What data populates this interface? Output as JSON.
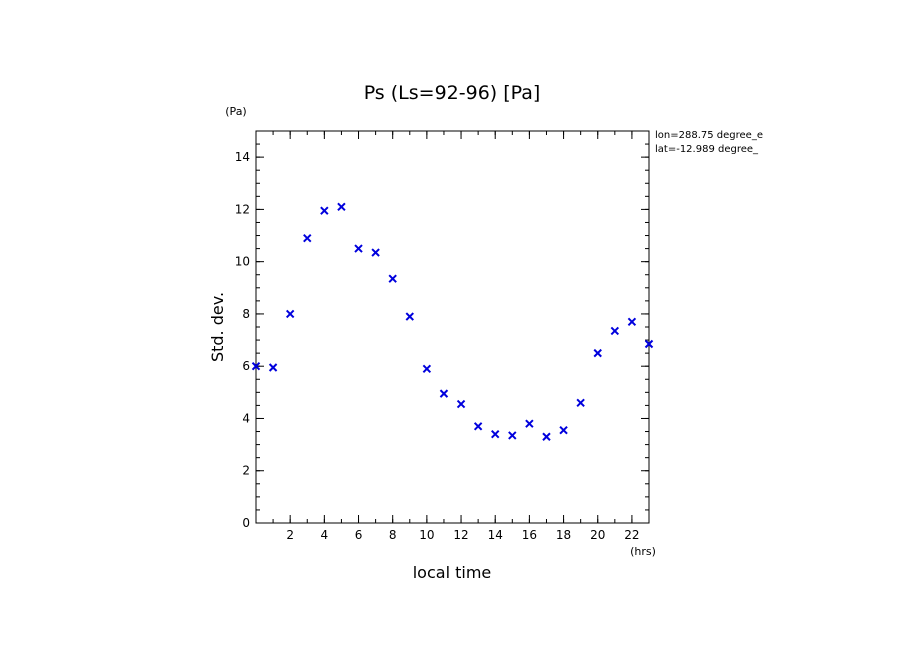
{
  "chart_data": {
    "type": "scatter",
    "title": "Ps (Ls=92-96) [Pa]",
    "xlabel": "local time",
    "ylabel": "Std. dev.",
    "x_unit": "(hrs)",
    "y_unit": "(Pa)",
    "xlim": [
      0,
      23
    ],
    "ylim": [
      0,
      15
    ],
    "x_ticks": [
      2,
      4,
      6,
      8,
      10,
      12,
      14,
      16,
      18,
      20,
      22
    ],
    "y_ticks": [
      0,
      2,
      4,
      6,
      8,
      10,
      12,
      14
    ],
    "annotations": [
      "lon=288.75 degree_e",
      "lat=-12.989 degree_"
    ],
    "marker": "x",
    "color": "#0000dd",
    "grid": false,
    "series": [
      {
        "x": [
          0,
          1,
          2,
          3,
          4,
          5,
          6,
          7,
          8,
          9,
          10,
          11,
          12,
          13,
          14,
          15,
          16,
          17,
          18,
          19,
          20,
          21,
          22,
          23
        ],
        "y": [
          6.0,
          5.95,
          8.0,
          10.9,
          11.95,
          12.1,
          10.5,
          10.35,
          9.35,
          7.9,
          5.9,
          4.95,
          4.55,
          3.7,
          3.4,
          3.35,
          3.8,
          3.3,
          3.55,
          4.6,
          6.5,
          7.35,
          7.7,
          6.85
        ]
      }
    ]
  }
}
